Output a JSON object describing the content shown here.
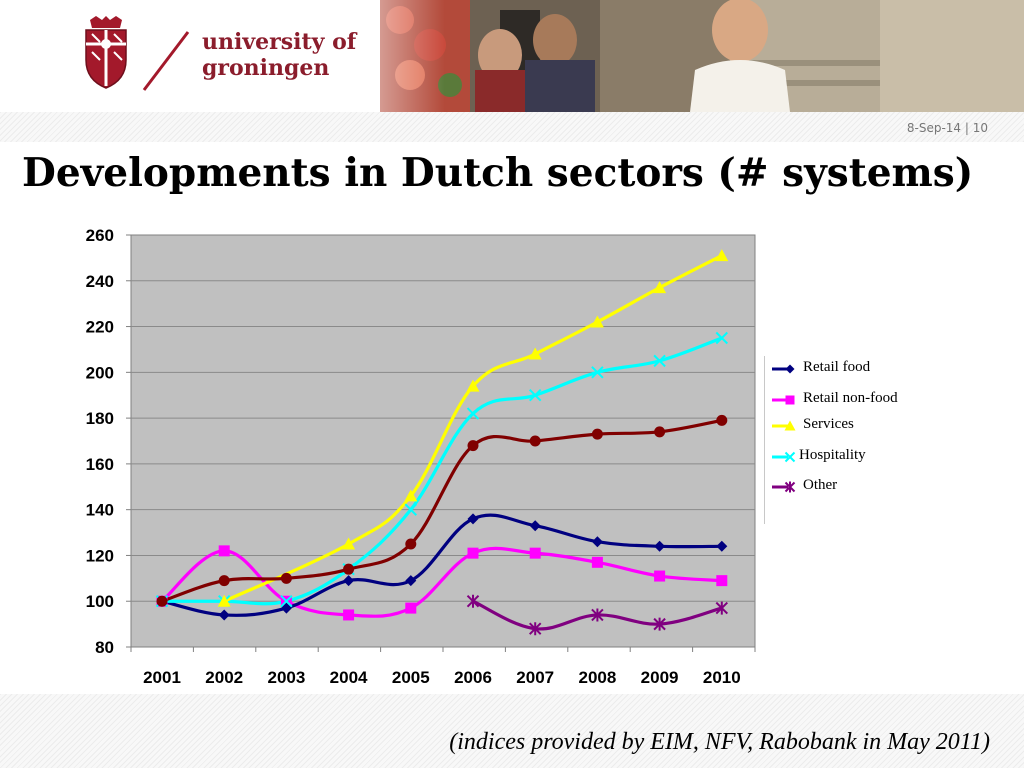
{
  "header": {
    "logo_line1": "university of",
    "logo_line2": "groningen",
    "crest_icon": "university-crest-icon",
    "brand_color": "#8b1d2c"
  },
  "date_page": "8-Sep-14 | 10",
  "title": "Developments in Dutch sectors (# systems)",
  "footer_note": "(indices provided by EIM, NFV, Rabobank in May 2011)",
  "chart_data": {
    "type": "line",
    "title": "",
    "xlabel": "",
    "ylabel": "",
    "categories": [
      "2001",
      "2002",
      "2003",
      "2004",
      "2005",
      "2006",
      "2007",
      "2008",
      "2009",
      "2010"
    ],
    "ylim": [
      80,
      260
    ],
    "yticks": [
      80,
      100,
      120,
      140,
      160,
      180,
      200,
      220,
      240,
      260
    ],
    "grid": true,
    "plot_background": "#c0c0c0",
    "legend_position": "right",
    "series": [
      {
        "name": "Retail food",
        "color": "#000080",
        "marker": "diamond",
        "values": [
          100,
          94,
          97,
          109,
          109,
          136,
          133,
          126,
          124,
          124
        ]
      },
      {
        "name": "Retail non-food",
        "color": "#ff00ff",
        "marker": "square",
        "values": [
          100,
          122,
          100,
          94,
          97,
          121,
          121,
          117,
          111,
          109
        ]
      },
      {
        "name": "Services",
        "color": "#ffff00",
        "marker": "triangle",
        "values": [
          null,
          100,
          null,
          125,
          146,
          194,
          208,
          222,
          237,
          251
        ]
      },
      {
        "name": "Hospitality",
        "color": "#00ffff",
        "marker": "x",
        "values": [
          100,
          100,
          100,
          114,
          140,
          182,
          190,
          200,
          205,
          215
        ]
      },
      {
        "name": "Other",
        "color": "#800080",
        "marker": "star",
        "values": [
          null,
          null,
          null,
          null,
          null,
          100,
          88,
          94,
          90,
          97
        ]
      },
      {
        "name": "",
        "color": "#800000",
        "marker": "circle",
        "values": [
          100,
          109,
          110,
          114,
          125,
          168,
          170,
          173,
          174,
          179
        ]
      }
    ],
    "legend_entries": [
      {
        "label": "Retail food",
        "color": "#000080",
        "marker": "diamond"
      },
      {
        "label": "Retail non-food",
        "color": "#ff00ff",
        "marker": "square"
      },
      {
        "label": "Services",
        "color": "#ffff00",
        "marker": "triangle"
      },
      {
        "label": "Hospitality",
        "color": "#00ffff",
        "marker": "x"
      },
      {
        "label": "Other",
        "color": "#800080",
        "marker": "star"
      }
    ]
  }
}
